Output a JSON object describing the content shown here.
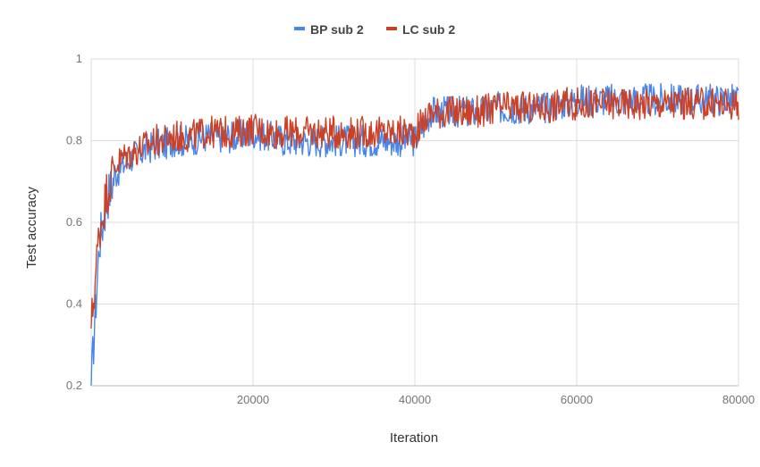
{
  "chart_data": {
    "type": "line",
    "title": "",
    "xlabel": "Iteration",
    "ylabel": "Test accuracy",
    "xlim": [
      0,
      80000
    ],
    "ylim": [
      0.2,
      1
    ],
    "x_ticks": [
      20000,
      40000,
      60000,
      80000
    ],
    "x_tick_labels": [
      "20000",
      "40000",
      "60000",
      "80000"
    ],
    "y_ticks": [
      0.2,
      0.4,
      0.6,
      0.8,
      1
    ],
    "y_tick_labels": [
      "0.2",
      "0.4",
      "0.6",
      "0.8",
      "1"
    ],
    "grid": true,
    "legend_position": "top",
    "x": [
      0,
      1000,
      2000,
      3000,
      4000,
      5000,
      6000,
      7000,
      8000,
      9000,
      10000,
      12000,
      14000,
      16000,
      18000,
      20000,
      22000,
      24000,
      26000,
      28000,
      30000,
      32000,
      34000,
      36000,
      38000,
      40000,
      42000,
      44000,
      46000,
      48000,
      50000,
      52000,
      54000,
      56000,
      58000,
      60000,
      62000,
      64000,
      66000,
      68000,
      70000,
      72000,
      74000,
      76000,
      78000,
      80000
    ],
    "series": [
      {
        "name": "BP sub 2",
        "color": "#4a86e8",
        "values": [
          0.2,
          0.55,
          0.66,
          0.72,
          0.74,
          0.76,
          0.77,
          0.78,
          0.79,
          0.79,
          0.8,
          0.8,
          0.81,
          0.81,
          0.81,
          0.82,
          0.81,
          0.8,
          0.8,
          0.8,
          0.8,
          0.8,
          0.8,
          0.8,
          0.8,
          0.8,
          0.87,
          0.87,
          0.87,
          0.87,
          0.88,
          0.88,
          0.88,
          0.88,
          0.89,
          0.9,
          0.9,
          0.9,
          0.9,
          0.9,
          0.9,
          0.9,
          0.9,
          0.9,
          0.9,
          0.9
        ],
        "noise": 0.04
      },
      {
        "name": "LC sub 2",
        "color": "#cc4125",
        "values": [
          0.34,
          0.58,
          0.68,
          0.74,
          0.76,
          0.77,
          0.78,
          0.79,
          0.8,
          0.8,
          0.81,
          0.81,
          0.82,
          0.82,
          0.82,
          0.83,
          0.82,
          0.82,
          0.82,
          0.82,
          0.82,
          0.82,
          0.82,
          0.82,
          0.82,
          0.82,
          0.87,
          0.87,
          0.87,
          0.87,
          0.88,
          0.88,
          0.88,
          0.88,
          0.89,
          0.89,
          0.89,
          0.89,
          0.89,
          0.89,
          0.89,
          0.89,
          0.89,
          0.89,
          0.89,
          0.89
        ],
        "noise": 0.04
      }
    ]
  }
}
